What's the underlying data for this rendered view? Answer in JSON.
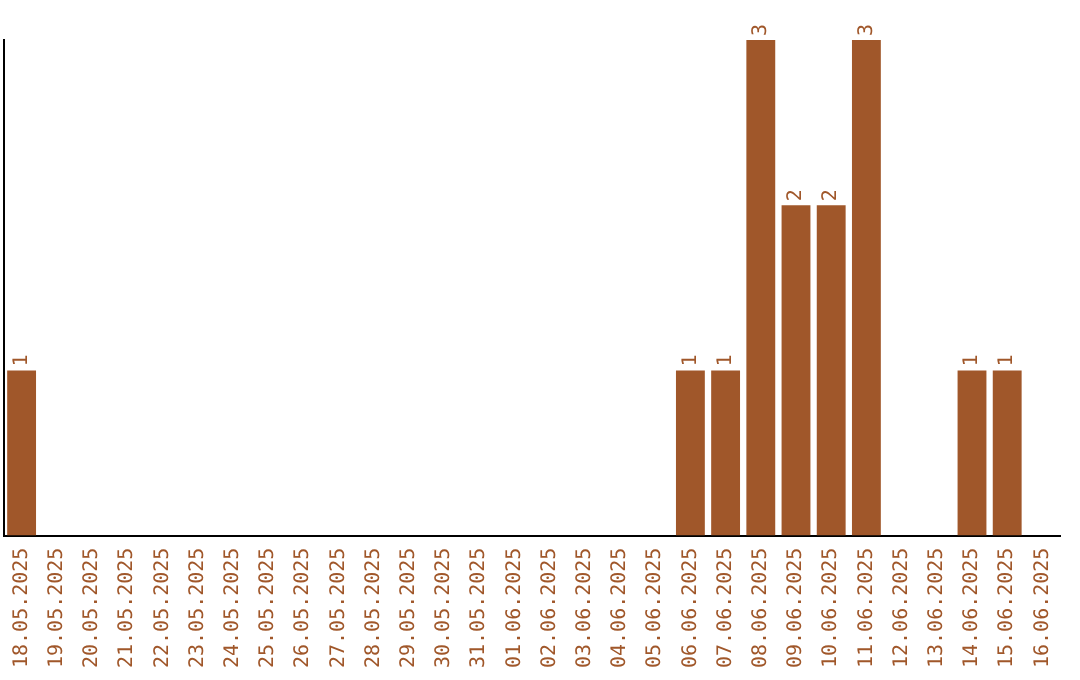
{
  "chart_data": {
    "type": "bar",
    "categories": [
      "18.05.2025",
      "19.05.2025",
      "20.05.2025",
      "21.05.2025",
      "22.05.2025",
      "23.05.2025",
      "24.05.2025",
      "25.05.2025",
      "26.05.2025",
      "27.05.2025",
      "28.05.2025",
      "29.05.2025",
      "30.05.2025",
      "31.05.2025",
      "01.06.2025",
      "02.06.2025",
      "03.06.2025",
      "04.06.2025",
      "05.06.2025",
      "06.06.2025",
      "07.06.2025",
      "08.06.2025",
      "09.06.2025",
      "10.06.2025",
      "11.06.2025",
      "12.06.2025",
      "13.06.2025",
      "14.06.2025",
      "15.06.2025",
      "16.06.2025"
    ],
    "values": [
      1,
      0,
      0,
      0,
      0,
      0,
      0,
      0,
      0,
      0,
      0,
      0,
      0,
      0,
      0,
      0,
      0,
      0,
      0,
      1,
      1,
      3,
      2,
      2,
      3,
      0,
      0,
      1,
      1,
      0
    ],
    "value_labels": [
      "1",
      null,
      null,
      null,
      null,
      null,
      null,
      null,
      null,
      null,
      null,
      null,
      null,
      null,
      null,
      null,
      null,
      null,
      null,
      "1",
      "1",
      "3",
      "2",
      "2",
      "3",
      null,
      null,
      "1",
      "1",
      null
    ],
    "color": "#a0572a",
    "ylim": [
      0,
      3
    ],
    "tick_labels": "x",
    "grid": false,
    "legend": false
  }
}
